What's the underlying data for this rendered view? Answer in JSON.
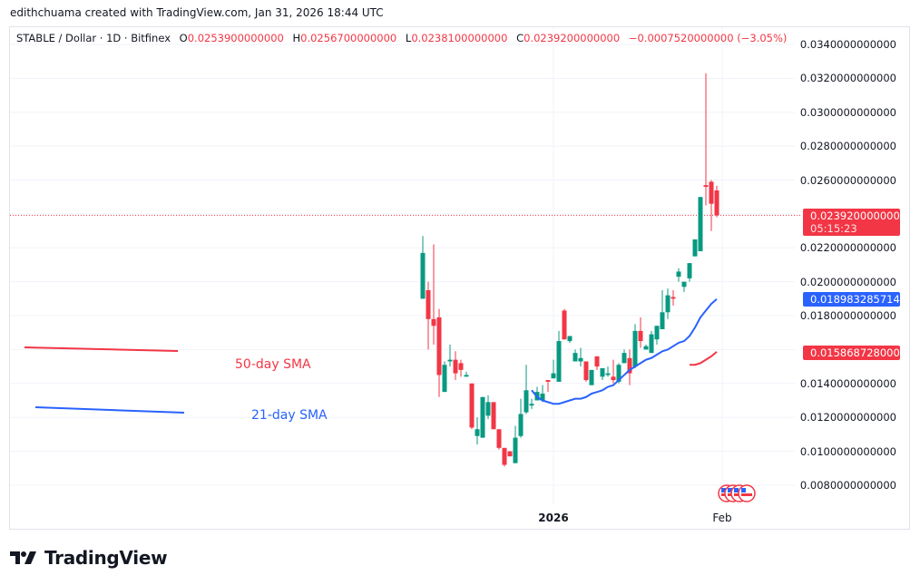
{
  "credit": "edithchuama created with TradingView.com, Jan 31, 2026 18:44 UTC",
  "legend": {
    "symbol": "STABLE / Dollar · 1D · Bitfinex",
    "o_label": "O",
    "o": "0.0253900000000",
    "h_label": "H",
    "h": "0.0256700000000",
    "l_label": "L",
    "l": "0.0238100000000",
    "c_label": "C",
    "c": "0.0239200000000",
    "change": "−0.0007520000000 (−3.05%)"
  },
  "price_axis": [
    "0.0340000000000",
    "0.0320000000000",
    "0.0300000000000",
    "0.0280000000000",
    "0.0260000000000",
    "0.0220000000000",
    "0.0200000000000",
    "0.0180000000000",
    "0.0140000000000",
    "0.0120000000000",
    "0.0100000000000",
    "0.0080000000000"
  ],
  "tags": {
    "last_price": "0.0239200000000",
    "countdown": "05:15:23",
    "sma21": "0.0189832857143",
    "sma50": "0.0158687280000"
  },
  "x_axis": {
    "year": "2026",
    "month": "Feb"
  },
  "annotations": {
    "sma50_label": "50-day SMA",
    "sma21_label": "21-day SMA"
  },
  "logo": "TradingView",
  "colors": {
    "up": "#089981",
    "down": "#f23645",
    "sma21": "#2962ff",
    "sma50": "#f23645"
  },
  "chart_data": {
    "type": "candlestick",
    "interval": "1D",
    "ylim": [
      0.007,
      0.035
    ],
    "grid": true,
    "ohlc": [
      [
        0.019,
        0.0227,
        0.019,
        0.0217
      ],
      [
        0.0195,
        0.02,
        0.016,
        0.0178
      ],
      [
        0.0178,
        0.0222,
        0.0163,
        0.0174
      ],
      [
        0.0179,
        0.0184,
        0.0132,
        0.0145
      ],
      [
        0.0135,
        0.0153,
        0.0135,
        0.0151
      ],
      [
        0.0153,
        0.0163,
        0.015,
        0.0154
      ],
      [
        0.0154,
        0.0159,
        0.0142,
        0.0146
      ],
      [
        0.0152,
        0.0154,
        0.0144,
        0.0148
      ],
      [
        0.0144,
        0.0147,
        0.0144,
        0.0145
      ],
      [
        0.014,
        0.014,
        0.0113,
        0.0114
      ],
      [
        0.0109,
        0.012,
        0.0104,
        0.0113
      ],
      [
        0.0108,
        0.0132,
        0.0108,
        0.0132
      ],
      [
        0.0121,
        0.0133,
        0.0119,
        0.0129
      ],
      [
        0.0129,
        0.0129,
        0.0113,
        0.0113
      ],
      [
        0.0113,
        0.0113,
        0.0101,
        0.0102
      ],
      [
        0.0102,
        0.0102,
        0.0091,
        0.0092
      ],
      [
        0.01,
        0.01,
        0.0097,
        0.0097
      ],
      [
        0.0093,
        0.0115,
        0.0093,
        0.0108
      ],
      [
        0.0109,
        0.0131,
        0.0108,
        0.0122
      ],
      [
        0.0123,
        0.0151,
        0.0122,
        0.0136
      ],
      [
        0.0127,
        0.0131,
        0.0125,
        0.0128
      ],
      [
        0.013,
        0.0138,
        0.013,
        0.0135
      ],
      [
        0.013,
        0.0139,
        0.0129,
        0.0134
      ],
      [
        0.0142,
        0.0142,
        0.0135,
        0.0141
      ],
      [
        0.0143,
        0.0154,
        0.0143,
        0.0146
      ],
      [
        0.0141,
        0.0171,
        0.0141,
        0.0165
      ],
      [
        0.0183,
        0.0184,
        0.0166,
        0.0166
      ],
      [
        0.0165,
        0.0168,
        0.0164,
        0.0168
      ],
      [
        0.0153,
        0.016,
        0.0153,
        0.0158
      ],
      [
        0.0153,
        0.0161,
        0.015,
        0.0155
      ],
      [
        0.0153,
        0.0153,
        0.0141,
        0.0142
      ],
      [
        0.0139,
        0.0148,
        0.0139,
        0.0148
      ],
      [
        0.0156,
        0.0156,
        0.0148,
        0.015
      ],
      [
        0.0144,
        0.0149,
        0.0142,
        0.0149
      ],
      [
        0.0145,
        0.015,
        0.0144,
        0.0146
      ],
      [
        0.0144,
        0.0154,
        0.014,
        0.0142
      ],
      [
        0.0141,
        0.0152,
        0.014,
        0.0151
      ],
      [
        0.0152,
        0.016,
        0.0152,
        0.0158
      ],
      [
        0.0155,
        0.016,
        0.0139,
        0.0146
      ],
      [
        0.015,
        0.0175,
        0.0149,
        0.0171
      ],
      [
        0.0171,
        0.0179,
        0.0161,
        0.0165
      ],
      [
        0.016,
        0.0163,
        0.016,
        0.0162
      ],
      [
        0.0158,
        0.0171,
        0.0158,
        0.0169
      ],
      [
        0.0166,
        0.0174,
        0.0163,
        0.0174
      ],
      [
        0.0172,
        0.0195,
        0.0172,
        0.0182
      ],
      [
        0.0182,
        0.0196,
        0.0178,
        0.0192
      ],
      [
        0.0191,
        0.0195,
        0.0186,
        0.019
      ],
      [
        0.0203,
        0.0208,
        0.02,
        0.0206
      ],
      [
        0.0197,
        0.02,
        0.0194,
        0.02
      ],
      [
        0.0202,
        0.0211,
        0.02,
        0.0211
      ],
      [
        0.0215,
        0.0225,
        0.0215,
        0.0225
      ],
      [
        0.0218,
        0.025,
        0.0218,
        0.025
      ],
      [
        0.0257,
        0.0323,
        0.0245,
        0.0256
      ],
      [
        0.0259,
        0.026,
        0.023,
        0.0246
      ],
      [
        0.02539,
        0.02567,
        0.02381,
        0.02392
      ]
    ],
    "series": [
      {
        "name": "21-day SMA",
        "values": [
          null,
          null,
          null,
          null,
          null,
          null,
          null,
          null,
          null,
          null,
          null,
          null,
          null,
          null,
          null,
          null,
          null,
          null,
          null,
          null,
          0.0136,
          0.0132,
          0.013,
          0.0129,
          0.0128,
          0.0128,
          0.0129,
          0.013,
          0.0131,
          0.0131,
          0.0132,
          0.0134,
          0.0135,
          0.0136,
          0.0138,
          0.0139,
          0.0142,
          0.0145,
          0.0148,
          0.015,
          0.0152,
          0.0154,
          0.0155,
          0.0157,
          0.0159,
          0.016,
          0.0162,
          0.0164,
          0.0165,
          0.0168,
          0.0173,
          0.0179,
          0.0183,
          0.0187,
          0.01898
        ]
      },
      {
        "name": "50-day SMA",
        "values": [
          null,
          null,
          null,
          null,
          null,
          null,
          null,
          null,
          null,
          null,
          null,
          null,
          null,
          null,
          null,
          null,
          null,
          null,
          null,
          null,
          null,
          null,
          null,
          null,
          null,
          null,
          null,
          null,
          null,
          null,
          null,
          null,
          null,
          null,
          null,
          null,
          null,
          null,
          null,
          null,
          null,
          null,
          null,
          null,
          null,
          null,
          null,
          null,
          null,
          0.0151,
          0.0151,
          0.0152,
          0.0154,
          0.0156,
          0.01587
        ]
      }
    ]
  }
}
